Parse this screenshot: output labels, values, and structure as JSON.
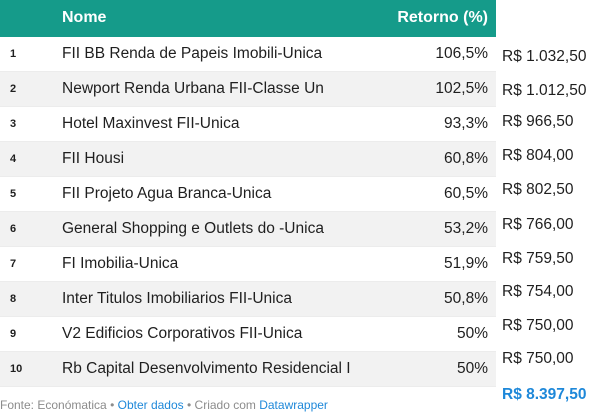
{
  "chart_data": {
    "type": "table",
    "columns": [
      "Nome",
      "Retorno (%)"
    ],
    "rows": [
      {
        "rank": "1",
        "name": "FII BB Renda de Papeis Imobili-Unica",
        "return": "106,5%",
        "value": "R$ 1.032,50"
      },
      {
        "rank": "2",
        "name": "Newport Renda Urbana FII-Classe Un",
        "return": "102,5%",
        "value": "R$ 1.012,50"
      },
      {
        "rank": "3",
        "name": "Hotel Maxinvest FII-Unica",
        "return": "93,3%",
        "value": "R$ 966,50"
      },
      {
        "rank": "4",
        "name": "FII Housi",
        "return": "60,8%",
        "value": "R$ 804,00"
      },
      {
        "rank": "5",
        "name": "FII Projeto Agua Branca-Unica",
        "return": "60,5%",
        "value": "R$ 802,50"
      },
      {
        "rank": "6",
        "name": "General Shopping e Outlets do -Unica",
        "return": "53,2%",
        "value": "R$ 766,00"
      },
      {
        "rank": "7",
        "name": "FI Imobilia-Unica",
        "return": "51,9%",
        "value": "R$ 759,50"
      },
      {
        "rank": "8",
        "name": "Inter Titulos Imobiliarios FII-Unica",
        "return": "50,8%",
        "value": "R$ 754,00"
      },
      {
        "rank": "9",
        "name": "V2 Edificios Corporativos FII-Unica",
        "return": "50%",
        "value": "R$ 750,00"
      },
      {
        "rank": "10",
        "name": "Rb Capital Desenvolvimento Residencial I",
        "return": "50%",
        "value": "R$ 750,00"
      }
    ],
    "total": "R$ 8.397,50"
  },
  "footer": {
    "source": "Fonte: Económatica",
    "sep1": " • ",
    "get_data": "Obter dados",
    "sep2": " • ",
    "created_with": "Criado com ",
    "datawrapper": "Datawrapper"
  },
  "colors": {
    "header": "#159b8a",
    "stripe": "#f2f2f2",
    "link": "#1e88d9"
  }
}
